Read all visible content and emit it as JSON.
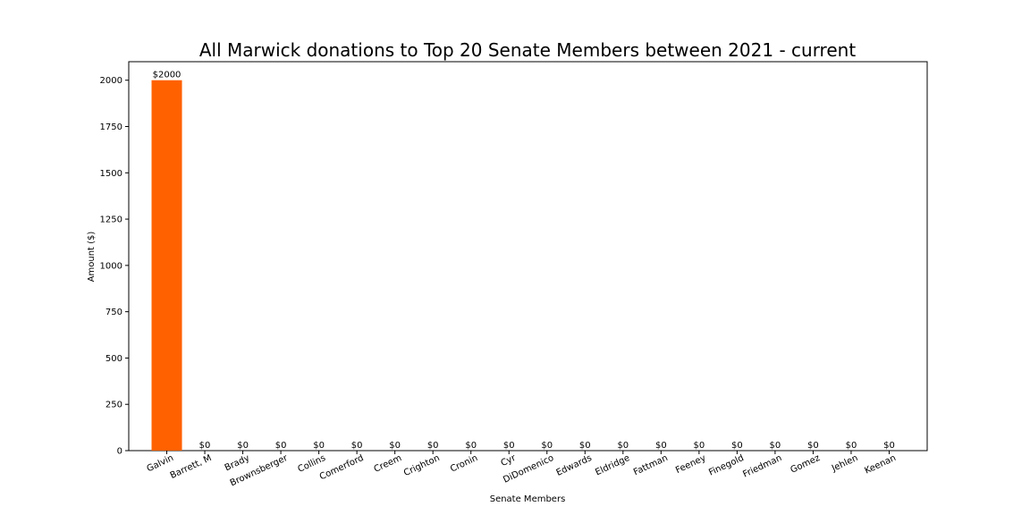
{
  "chart_data": {
    "type": "bar",
    "title": "All Marwick donations to Top 20 Senate Members between 2021 - current",
    "xlabel": "Senate Members",
    "ylabel": "Amount ($)",
    "categories": [
      "Galvin",
      "Barrett, M",
      "Brady",
      "Brownsberger",
      "Collins",
      "Comerford",
      "Creem",
      "Crighton",
      "Cronin",
      "Cyr",
      "DiDomenico",
      "Edwards",
      "Eldridge",
      "Fattman",
      "Feeney",
      "Finegold",
      "Friedman",
      "Gomez",
      "Jehlen",
      "Keenan"
    ],
    "values": [
      2000,
      0,
      0,
      0,
      0,
      0,
      0,
      0,
      0,
      0,
      0,
      0,
      0,
      0,
      0,
      0,
      0,
      0,
      0,
      0
    ],
    "data_labels": [
      "$2000",
      "$0",
      "$0",
      "$0",
      "$0",
      "$0",
      "$0",
      "$0",
      "$0",
      "$0",
      "$0",
      "$0",
      "$0",
      "$0",
      "$0",
      "$0",
      "$0",
      "$0",
      "$0",
      "$0"
    ],
    "ylim": [
      0,
      2100
    ],
    "yticks": [
      0,
      250,
      500,
      750,
      1000,
      1250,
      1500,
      1750,
      2000
    ],
    "bar_color": "#ff6100",
    "grid": false,
    "legend": "none"
  }
}
